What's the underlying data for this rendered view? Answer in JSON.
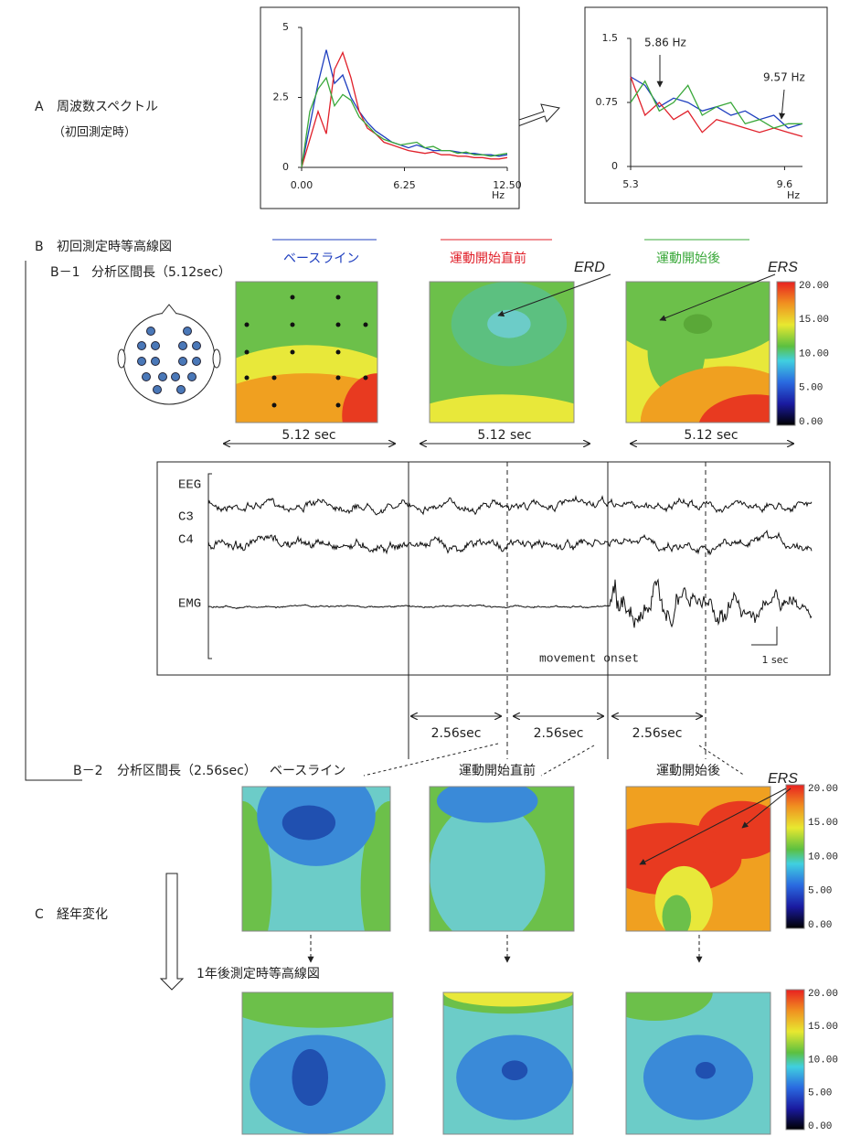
{
  "chart_data": [
    {
      "type": "line",
      "x": [
        0,
        0.5,
        1,
        1.5,
        2,
        2.5,
        3,
        3.5,
        4,
        4.5,
        5,
        5.5,
        6,
        6.5,
        7,
        7.5,
        8,
        8.5,
        9,
        9.5,
        10,
        10.5,
        11,
        11.5,
        12,
        12.5
      ],
      "xlim": [
        0,
        12.5
      ],
      "xticks": [
        {
          "value": 0,
          "label": "0.00"
        },
        {
          "value": 6.25,
          "label": "6.25"
        },
        {
          "value": 12.5,
          "label": "12.50"
        }
      ],
      "ylim": [
        0,
        5
      ],
      "yticks": [
        0,
        2.5,
        5
      ],
      "x_label": "Hz",
      "series": [
        {
          "color": "#1f3fbf",
          "values": [
            0,
            1.5,
            3,
            4.2,
            3.0,
            3.3,
            2.5,
            2.0,
            1.6,
            1.3,
            1.1,
            0.9,
            0.8,
            0.7,
            0.8,
            0.7,
            0.6,
            0.6,
            0.6,
            0.55,
            0.5,
            0.5,
            0.45,
            0.45,
            0.4,
            0.45
          ]
        },
        {
          "color": "#e0202a",
          "values": [
            0,
            1.0,
            2.0,
            1.2,
            3.5,
            4.1,
            3.2,
            2.0,
            1.4,
            1.2,
            0.9,
            0.8,
            0.7,
            0.6,
            0.55,
            0.5,
            0.55,
            0.45,
            0.45,
            0.4,
            0.4,
            0.35,
            0.35,
            0.3,
            0.3,
            0.35
          ]
        },
        {
          "color": "#3aa83a",
          "values": [
            0,
            2.0,
            2.8,
            3.2,
            2.2,
            2.6,
            2.4,
            1.8,
            1.5,
            1.2,
            1.0,
            0.9,
            0.8,
            0.85,
            0.9,
            0.7,
            0.75,
            0.6,
            0.6,
            0.5,
            0.55,
            0.45,
            0.45,
            0.4,
            0.45,
            0.5
          ]
        }
      ]
    },
    {
      "type": "line",
      "x": [
        5.3,
        5.7,
        6.1,
        6.5,
        6.9,
        7.3,
        7.7,
        8.1,
        8.5,
        8.9,
        9.3,
        9.7,
        10.1
      ],
      "xlim": [
        5.3,
        10.1
      ],
      "xticks": [
        5.3,
        9.6
      ],
      "ylim": [
        0,
        1.5
      ],
      "yticks": [
        0,
        0.75,
        1.5
      ],
      "x_label": "Hz",
      "annotations": [
        "5.86 Hz",
        "9.57 Hz"
      ],
      "series": [
        {
          "color": "#1f3fbf",
          "values": [
            1.05,
            0.95,
            0.7,
            0.8,
            0.75,
            0.65,
            0.7,
            0.6,
            0.65,
            0.55,
            0.6,
            0.45,
            0.5
          ]
        },
        {
          "color": "#e0202a",
          "values": [
            1.05,
            0.6,
            0.75,
            0.55,
            0.65,
            0.4,
            0.55,
            0.5,
            0.45,
            0.4,
            0.45,
            0.4,
            0.35
          ]
        },
        {
          "color": "#3aa83a",
          "values": [
            0.75,
            1.0,
            0.65,
            0.75,
            0.95,
            0.6,
            0.7,
            0.75,
            0.5,
            0.55,
            0.45,
            0.5,
            0.5
          ]
        }
      ]
    }
  ],
  "section_a": {
    "label": "A",
    "title": "周波数スペクトル",
    "note": "（初回測定時）"
  },
  "section_b": {
    "label": "B",
    "title": "初回測定時等高線図",
    "conditions": [
      "ベースライン",
      "運動開始直前",
      "運動開始後"
    ],
    "b1": {
      "label": "B－1",
      "title": "分析区間長（5.12sec）",
      "durations": [
        "5.12 sec",
        "5.12 sec",
        "5.12 sec"
      ],
      "erd": "ERD",
      "ers": "ERS"
    },
    "eeg": {
      "labels": [
        "EEG",
        "C3",
        "C4",
        "EMG"
      ],
      "onset": "movement onset",
      "scale": "1 sec",
      "intervals": [
        "2.56sec",
        "2.56sec",
        "2.56sec"
      ]
    },
    "b2": {
      "label": "B－2",
      "title": "分析区間長（2.56sec）",
      "conditions": [
        "ベースライン",
        "運動開始直前",
        "運動開始後"
      ],
      "ers": "ERS"
    }
  },
  "section_c": {
    "label": "C",
    "title": "経年変化",
    "subtitle": "1年後測定時等高線図"
  },
  "colorbar": {
    "labels": [
      "20.00",
      "15.00",
      "10.00",
      "5.00",
      "0.00"
    ]
  }
}
